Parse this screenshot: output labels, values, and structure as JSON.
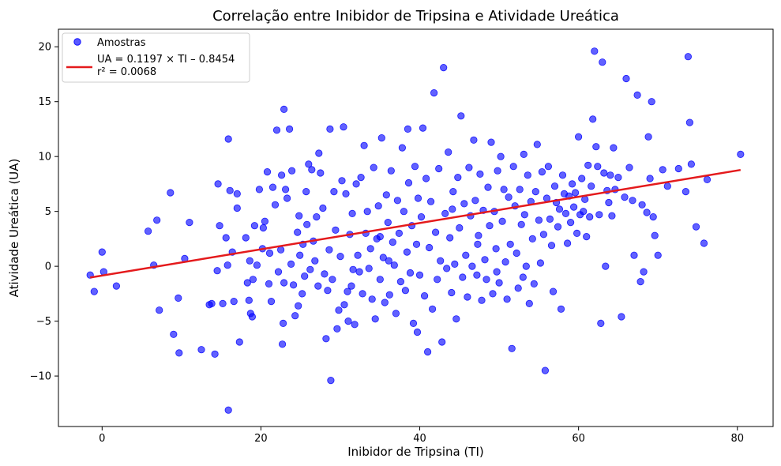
{
  "chart_data": {
    "type": "scatter",
    "title": "Correlação entre Inibidor de Tripsina e Atividade Ureática",
    "xlabel": "Inibidor de Tripsina (TI)",
    "ylabel": "Atividade Ureática (UA)",
    "xlim": [
      -5.5,
      84.5
    ],
    "ylim": [
      -14.6,
      21.6
    ],
    "xticks": [
      0,
      20,
      40,
      60,
      80
    ],
    "yticks": [
      -10,
      -5,
      0,
      5,
      10,
      15,
      20
    ],
    "grid": false,
    "legend_position": "top-left",
    "colors": {
      "points": "#0000ff",
      "fit_line": "#e41a1c"
    },
    "series": [
      {
        "name": "Amostras",
        "kind": "scatter",
        "points": [
          [
            -1.5,
            -0.8
          ],
          [
            -1,
            -2.3
          ],
          [
            0,
            1.3
          ],
          [
            0.2,
            -0.5
          ],
          [
            1.8,
            -1.8
          ],
          [
            5.8,
            3.2
          ],
          [
            6.5,
            0.1
          ],
          [
            6.9,
            4.2
          ],
          [
            7.2,
            -4.0
          ],
          [
            8.6,
            6.7
          ],
          [
            9.0,
            -6.2
          ],
          [
            9.6,
            -2.9
          ],
          [
            9.7,
            -7.9
          ],
          [
            10.4,
            0.7
          ],
          [
            11.0,
            4.0
          ],
          [
            12.5,
            -7.6
          ],
          [
            13.5,
            -3.5
          ],
          [
            13.8,
            -3.4
          ],
          [
            14.2,
            -8.0
          ],
          [
            14.5,
            -0.4
          ],
          [
            14.6,
            7.5
          ],
          [
            14.8,
            3.7
          ],
          [
            15.2,
            -3.4
          ],
          [
            15.6,
            2.6
          ],
          [
            15.8,
            0.1
          ],
          [
            15.9,
            11.6
          ],
          [
            15.9,
            -13.1
          ],
          [
            16.1,
            6.9
          ],
          [
            16.4,
            1.3
          ],
          [
            16.6,
            -3.2
          ],
          [
            17.0,
            5.3
          ],
          [
            17.0,
            6.6
          ],
          [
            17.3,
            -6.9
          ],
          [
            18.1,
            2.6
          ],
          [
            18.3,
            -1.5
          ],
          [
            18.5,
            -3.1
          ],
          [
            18.6,
            0.5
          ],
          [
            18.7,
            -4.3
          ],
          [
            18.9,
            -4.6
          ],
          [
            19.0,
            -1.2
          ],
          [
            19.2,
            3.7
          ],
          [
            19.5,
            0.1
          ],
          [
            19.8,
            7.0
          ],
          [
            20.2,
            1.6
          ],
          [
            20.3,
            3.5
          ],
          [
            20.5,
            4.1
          ],
          [
            20.8,
            8.6
          ],
          [
            21.0,
            -1.6
          ],
          [
            21.3,
            -3.2
          ],
          [
            21.5,
            7.2
          ],
          [
            21.8,
            5.6
          ],
          [
            22.0,
            12.4
          ],
          [
            22.2,
            -0.5
          ],
          [
            22.5,
            1.5
          ],
          [
            22.6,
            8.3
          ],
          [
            22.7,
            -7.1
          ],
          [
            22.8,
            -5.2
          ],
          [
            22.9,
            14.3
          ],
          [
            22.9,
            -1.5
          ],
          [
            23.1,
            7.0
          ],
          [
            23.3,
            6.2
          ],
          [
            23.6,
            12.5
          ],
          [
            23.8,
            0.2
          ],
          [
            23.9,
            8.7
          ],
          [
            24.1,
            -1.7
          ],
          [
            24.3,
            -4.5
          ],
          [
            24.6,
            3.1
          ],
          [
            24.7,
            -3.6
          ],
          [
            24.8,
            4.6
          ],
          [
            24.9,
            1.0
          ],
          [
            25.2,
            -2.5
          ],
          [
            25.3,
            2.0
          ],
          [
            25.5,
            -0.9
          ],
          [
            25.7,
            6.8
          ],
          [
            25.8,
            3.8
          ],
          [
            26.0,
            9.3
          ],
          [
            26.2,
            -0.3
          ],
          [
            26.4,
            8.8
          ],
          [
            26.6,
            2.3
          ],
          [
            26.8,
            0.5
          ],
          [
            27.0,
            4.5
          ],
          [
            27.2,
            -1.8
          ],
          [
            27.5,
            8.5
          ],
          [
            27.8,
            5.3
          ],
          [
            28.0,
            -0.7
          ],
          [
            28.2,
            -6.6
          ],
          [
            28.4,
            -2.2
          ],
          [
            28.6,
            1.5
          ],
          [
            28.7,
            12.5
          ],
          [
            28.8,
            -10.4
          ],
          [
            29.0,
            -1.2
          ],
          [
            29.2,
            6.8
          ],
          [
            29.4,
            3.3
          ],
          [
            29.6,
            -5.7
          ],
          [
            29.8,
            -4.0
          ],
          [
            30.0,
            0.9
          ],
          [
            30.2,
            7.8
          ],
          [
            30.4,
            12.7
          ],
          [
            30.5,
            -3.5
          ],
          [
            30.7,
            6.6
          ],
          [
            30.9,
            -2.3
          ],
          [
            31.0,
            -5.0
          ],
          [
            31.2,
            2.9
          ],
          [
            31.4,
            -1.8
          ],
          [
            31.6,
            -0.3
          ],
          [
            31.8,
            -5.3
          ],
          [
            32.0,
            7.5
          ],
          [
            32.2,
            1.0
          ],
          [
            32.4,
            -0.5
          ],
          [
            32.6,
            8.1
          ],
          [
            32.8,
            -2.5
          ],
          [
            33.0,
            11.0
          ],
          [
            33.2,
            3.0
          ],
          [
            33.4,
            5.0
          ],
          [
            33.6,
            -0.2
          ],
          [
            33.8,
            1.6
          ],
          [
            34.0,
            -3.0
          ],
          [
            34.2,
            9.0
          ],
          [
            34.4,
            -4.8
          ],
          [
            34.6,
            2.5
          ],
          [
            34.8,
            5.5
          ],
          [
            35.0,
            -1.2
          ],
          [
            35.2,
            11.7
          ],
          [
            35.4,
            0.8
          ],
          [
            35.6,
            -3.3
          ],
          [
            35.8,
            6.5
          ],
          [
            36.0,
            4.0
          ],
          [
            36.2,
            -2.6
          ],
          [
            36.4,
            8.7
          ],
          [
            36.6,
            2.2
          ],
          [
            36.8,
            0.1
          ],
          [
            37.0,
            -4.3
          ],
          [
            37.2,
            6.0
          ],
          [
            37.4,
            3.0
          ],
          [
            37.6,
            -1.4
          ],
          [
            37.8,
            10.8
          ],
          [
            38.0,
            5.0
          ],
          [
            38.2,
            -2.2
          ],
          [
            38.4,
            1.3
          ],
          [
            38.6,
            7.6
          ],
          [
            38.8,
            -0.6
          ],
          [
            39.0,
            3.7
          ],
          [
            39.2,
            -5.2
          ],
          [
            39.4,
            9.1
          ],
          [
            39.6,
            2.0
          ],
          [
            39.8,
            6.2
          ],
          [
            40.0,
            -0.8
          ],
          [
            40.2,
            4.5
          ],
          [
            40.4,
            12.6
          ],
          [
            40.6,
            -2.7
          ],
          [
            40.8,
            8.0
          ],
          [
            41.0,
            -7.8
          ],
          [
            41.2,
            1.7
          ],
          [
            41.4,
            5.9
          ],
          [
            41.6,
            -3.9
          ],
          [
            41.8,
            15.8
          ],
          [
            42.0,
            3.1
          ],
          [
            42.2,
            -1.2
          ],
          [
            42.4,
            8.9
          ],
          [
            42.6,
            0.5
          ],
          [
            42.8,
            -6.9
          ],
          [
            43.0,
            18.1
          ],
          [
            43.2,
            4.8
          ],
          [
            43.4,
            -0.2
          ],
          [
            43.6,
            10.4
          ],
          [
            43.8,
            2.6
          ],
          [
            44.0,
            -2.4
          ],
          [
            44.2,
            6.8
          ],
          [
            44.4,
            0.2
          ],
          [
            44.6,
            -4.8
          ],
          [
            44.8,
            8.1
          ],
          [
            45.0,
            3.5
          ],
          [
            45.2,
            13.7
          ],
          [
            45.4,
            -1.0
          ],
          [
            45.6,
            5.7
          ],
          [
            45.8,
            1.0
          ],
          [
            46.0,
            -2.8
          ],
          [
            46.2,
            9.0
          ],
          [
            46.4,
            4.6
          ],
          [
            46.6,
            0.0
          ],
          [
            46.8,
            11.5
          ],
          [
            47.0,
            6.0
          ],
          [
            47.2,
            -0.8
          ],
          [
            47.4,
            2.8
          ],
          [
            47.6,
            8.4
          ],
          [
            47.8,
            -3.1
          ],
          [
            48.0,
            5.1
          ],
          [
            48.2,
            0.6
          ],
          [
            48.4,
            -1.2
          ],
          [
            48.6,
            7.2
          ],
          [
            48.8,
            3.7
          ],
          [
            49.0,
            11.3
          ],
          [
            49.2,
            -2.5
          ],
          [
            49.4,
            5.0
          ],
          [
            49.6,
            1.6
          ],
          [
            49.8,
            8.7
          ],
          [
            50.0,
            -1.5
          ],
          [
            50.2,
            10.0
          ],
          [
            50.4,
            4.1
          ],
          [
            50.6,
            7.0
          ],
          [
            50.8,
            0.4
          ],
          [
            51.0,
            -3.0
          ],
          [
            51.2,
            6.3
          ],
          [
            51.4,
            2.0
          ],
          [
            51.6,
            -7.5
          ],
          [
            51.8,
            9.1
          ],
          [
            52.0,
            5.5
          ],
          [
            52.2,
            1.2
          ],
          [
            52.4,
            -2.0
          ],
          [
            52.6,
            7.0
          ],
          [
            52.8,
            3.8
          ],
          [
            53.0,
            -1.0
          ],
          [
            53.2,
            4.7
          ],
          [
            53.4,
            0.0
          ],
          [
            53.6,
            8.3
          ],
          [
            53.8,
            -3.4
          ],
          [
            54.0,
            5.9
          ],
          [
            54.2,
            2.5
          ],
          [
            54.4,
            -1.6
          ],
          [
            54.6,
            6.8
          ],
          [
            54.8,
            11.1
          ],
          [
            55.0,
            4.2
          ],
          [
            55.2,
            0.3
          ],
          [
            55.4,
            8.6
          ],
          [
            55.6,
            2.9
          ],
          [
            55.8,
            -9.5
          ],
          [
            56.0,
            6.2
          ],
          [
            56.2,
            9.1
          ],
          [
            56.4,
            4.3
          ],
          [
            56.6,
            1.9
          ],
          [
            56.8,
            -2.3
          ],
          [
            57.0,
            7.3
          ],
          [
            57.2,
            5.8
          ],
          [
            57.4,
            3.6
          ],
          [
            57.6,
            5.2
          ],
          [
            57.8,
            -3.9
          ],
          [
            58.0,
            8.3
          ],
          [
            58.2,
            6.6
          ],
          [
            58.4,
            4.8
          ],
          [
            58.6,
            2.1
          ],
          [
            58.8,
            6.4
          ],
          [
            59.0,
            4.0
          ],
          [
            59.2,
            7.5
          ],
          [
            59.4,
            5.4
          ],
          [
            59.6,
            6.7
          ],
          [
            59.8,
            3.0
          ],
          [
            60.0,
            11.8
          ],
          [
            60.2,
            4.7
          ],
          [
            60.4,
            8.0
          ],
          [
            60.6,
            5.0
          ],
          [
            60.8,
            6.1
          ],
          [
            61.0,
            2.7
          ],
          [
            61.2,
            9.2
          ],
          [
            61.4,
            4.5
          ],
          [
            61.6,
            7.3
          ],
          [
            61.8,
            13.4
          ],
          [
            62.0,
            19.6
          ],
          [
            62.2,
            10.9
          ],
          [
            62.4,
            9.1
          ],
          [
            62.6,
            4.7
          ],
          [
            62.8,
            -5.2
          ],
          [
            63.0,
            18.6
          ],
          [
            63.2,
            8.5
          ],
          [
            63.4,
            0.0
          ],
          [
            63.6,
            6.9
          ],
          [
            63.8,
            5.8
          ],
          [
            64.0,
            8.3
          ],
          [
            64.2,
            4.6
          ],
          [
            64.4,
            10.8
          ],
          [
            64.6,
            7.0
          ],
          [
            65.0,
            8.1
          ],
          [
            65.4,
            -4.6
          ],
          [
            65.8,
            6.3
          ],
          [
            66.0,
            17.1
          ],
          [
            66.4,
            9.0
          ],
          [
            66.8,
            6.0
          ],
          [
            67.0,
            1.0
          ],
          [
            67.4,
            15.6
          ],
          [
            67.8,
            -1.4
          ],
          [
            68.0,
            5.6
          ],
          [
            68.2,
            -0.5
          ],
          [
            68.6,
            4.9
          ],
          [
            68.8,
            11.8
          ],
          [
            69.0,
            8.0
          ],
          [
            69.2,
            15.0
          ],
          [
            69.4,
            4.5
          ],
          [
            69.6,
            2.8
          ],
          [
            70.0,
            1.0
          ],
          [
            70.6,
            8.8
          ],
          [
            71.2,
            7.3
          ],
          [
            72.6,
            8.9
          ],
          [
            73.5,
            6.8
          ],
          [
            73.8,
            19.1
          ],
          [
            74.0,
            13.1
          ],
          [
            74.2,
            9.3
          ],
          [
            74.8,
            3.6
          ],
          [
            75.8,
            2.1
          ],
          [
            76.2,
            7.9
          ],
          [
            80.4,
            10.2
          ],
          [
            21.1,
            1.2
          ],
          [
            27.3,
            10.3
          ],
          [
            31.5,
            4.8
          ],
          [
            36.1,
            0.5
          ],
          [
            38.5,
            12.5
          ],
          [
            44.1,
            5.2
          ],
          [
            47.3,
            2.0
          ],
          [
            49.7,
            -0.5
          ],
          [
            53.1,
            10.2
          ],
          [
            39.7,
            -6.0
          ],
          [
            35.0,
            2.7
          ]
        ]
      },
      {
        "name": "UA = 0.1197 × TI – 0.8454\nr² = 0.0068",
        "kind": "line",
        "slope": 0.1197,
        "intercept": -0.8454,
        "x_range": [
          -1.5,
          80.4
        ]
      }
    ],
    "legend": [
      {
        "label": "Amostras",
        "marker": "circle"
      },
      {
        "label_line1": "UA = 0.1197 × TI – 0.8454",
        "label_line2": "r² = 0.0068",
        "marker": "line"
      }
    ]
  }
}
